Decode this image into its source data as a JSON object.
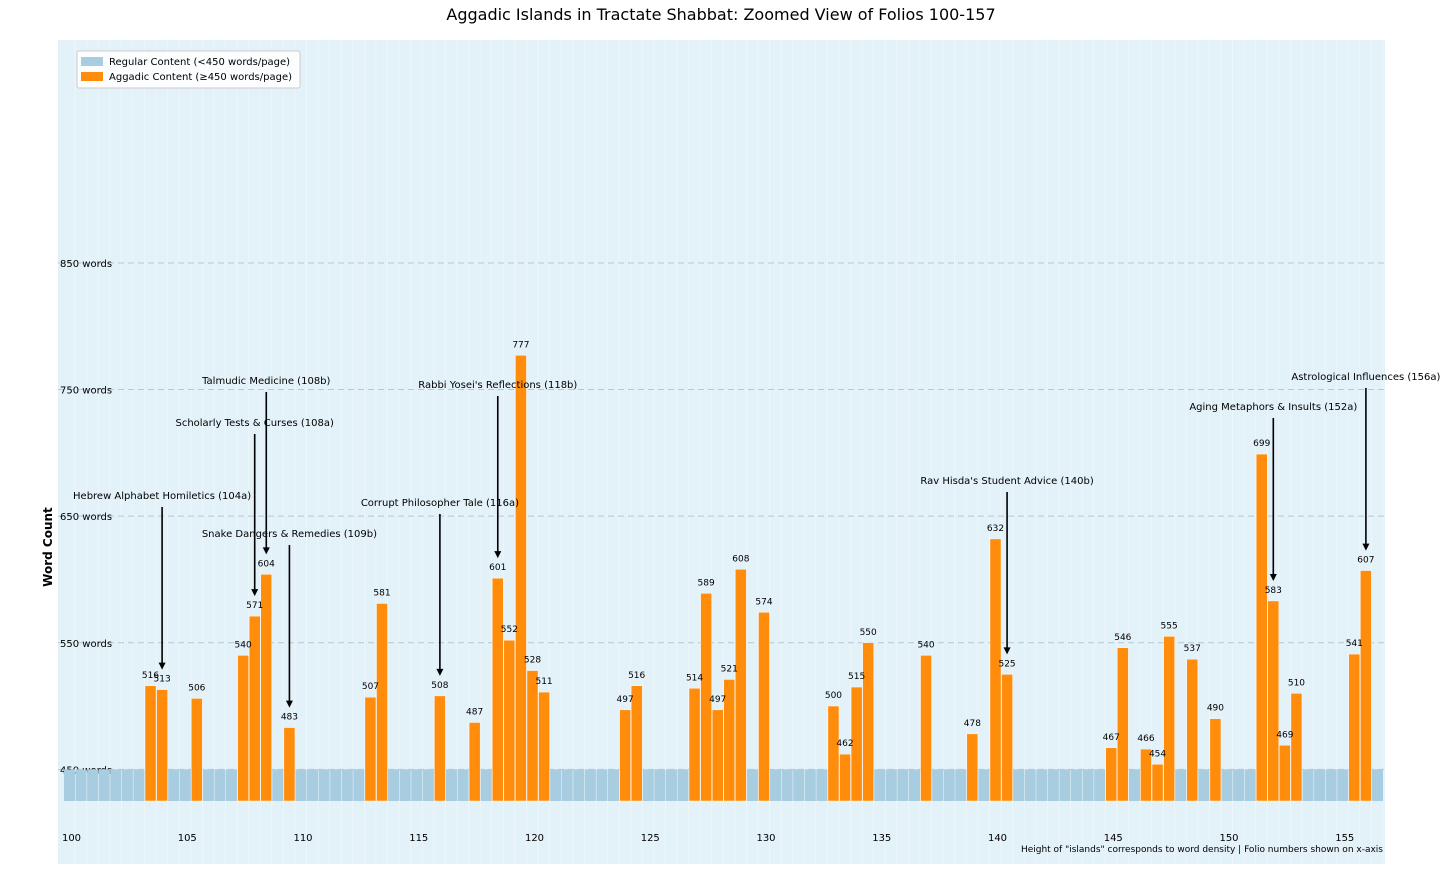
{
  "chart_data": {
    "type": "bar",
    "title": "Aggadic Islands in Tractate Shabbat: Zoomed View of Folios 100-157",
    "xlabel": "",
    "ylabel": "Word Count",
    "y_ticks": [
      {
        "value": 450,
        "label": "450 words"
      },
      {
        "value": 550,
        "label": "550 words"
      },
      {
        "value": 650,
        "label": "650 words"
      },
      {
        "value": 750,
        "label": "750 words"
      },
      {
        "value": 850,
        "label": "850 words"
      }
    ],
    "x_ticks": [
      100,
      105,
      110,
      115,
      120,
      125,
      130,
      135,
      140,
      145,
      150,
      155
    ],
    "x_range": [
      100,
      157
    ],
    "y_range": [
      425,
      1025
    ],
    "baseline": 425,
    "threshold": 450,
    "grid": "horizontal dashed",
    "legend_position": "top-left",
    "series": [
      {
        "name": "Regular Content (<450 words/page)",
        "color": "#a8cce0"
      },
      {
        "name": "Aggadic Content (≥450 words/page)",
        "color": "#ff8c0a"
      }
    ],
    "aggadic_bars": [
      {
        "folio": 103.5,
        "value": 516
      },
      {
        "folio": 104,
        "value": 513
      },
      {
        "folio": 105.5,
        "value": 506
      },
      {
        "folio": 107.5,
        "value": 540
      },
      {
        "folio": 108,
        "value": 571
      },
      {
        "folio": 108.5,
        "value": 604
      },
      {
        "folio": 109.5,
        "value": 483
      },
      {
        "folio": 113,
        "value": 507
      },
      {
        "folio": 113.5,
        "value": 581
      },
      {
        "folio": 116,
        "value": 508
      },
      {
        "folio": 117.5,
        "value": 487
      },
      {
        "folio": 118.5,
        "value": 601
      },
      {
        "folio": 119,
        "value": 552
      },
      {
        "folio": 119.5,
        "value": 777
      },
      {
        "folio": 120,
        "value": 528
      },
      {
        "folio": 120.5,
        "value": 511
      },
      {
        "folio": 124,
        "value": 497
      },
      {
        "folio": 124.5,
        "value": 516
      },
      {
        "folio": 127,
        "value": 514
      },
      {
        "folio": 127.5,
        "value": 589
      },
      {
        "folio": 128,
        "value": 497
      },
      {
        "folio": 128.5,
        "value": 521
      },
      {
        "folio": 129,
        "value": 608
      },
      {
        "folio": 130,
        "value": 574
      },
      {
        "folio": 133,
        "value": 500
      },
      {
        "folio": 133.5,
        "value": 462
      },
      {
        "folio": 134,
        "value": 515
      },
      {
        "folio": 134.5,
        "value": 550
      },
      {
        "folio": 137,
        "value": 540
      },
      {
        "folio": 139,
        "value": 478
      },
      {
        "folio": 140,
        "value": 632
      },
      {
        "folio": 140.5,
        "value": 525
      },
      {
        "folio": 145,
        "value": 467
      },
      {
        "folio": 145.5,
        "value": 546
      },
      {
        "folio": 146.5,
        "value": 466
      },
      {
        "folio": 147,
        "value": 454
      },
      {
        "folio": 147.5,
        "value": 555
      },
      {
        "folio": 148.5,
        "value": 537
      },
      {
        "folio": 149.5,
        "value": 490
      },
      {
        "folio": 151.5,
        "value": 699
      },
      {
        "folio": 152,
        "value": 583
      },
      {
        "folio": 152.5,
        "value": 469
      },
      {
        "folio": 153,
        "value": 510
      },
      {
        "folio": 155.5,
        "value": 541
      },
      {
        "folio": 156,
        "value": 607
      }
    ],
    "annotations": [
      {
        "text": "Hebrew Alphabet Homiletics (104a)",
        "folio": 104,
        "value": 513
      },
      {
        "text": "Scholarly Tests & Curses (108a)",
        "folio": 108,
        "value": 571
      },
      {
        "text": "Talmudic Medicine (108b)",
        "folio": 108.5,
        "value": 604
      },
      {
        "text": "Snake Dangers & Remedies (109b)",
        "folio": 109.5,
        "value": 483
      },
      {
        "text": "Corrupt Philosopher Tale (116a)",
        "folio": 116,
        "value": 508
      },
      {
        "text": "Rabbi Yosei's Reflections (118b)",
        "folio": 118.5,
        "value": 601
      },
      {
        "text": "Rav Hisda's Student Advice (140b)",
        "folio": 140.5,
        "value": 525
      },
      {
        "text": "Aging Metaphors & Insults (152a)",
        "folio": 152,
        "value": 583
      },
      {
        "text": "Astrological Influences (156a)",
        "folio": 156,
        "value": 607
      }
    ],
    "footnote": "Height of \"islands\" corresponds to word density | Folio numbers shown on x-axis"
  },
  "colors": {
    "plot_background": "#e3f1f8",
    "regular": "#a8cce0",
    "aggadic": "#ff8c0a",
    "grid": "#b8c8d2"
  }
}
